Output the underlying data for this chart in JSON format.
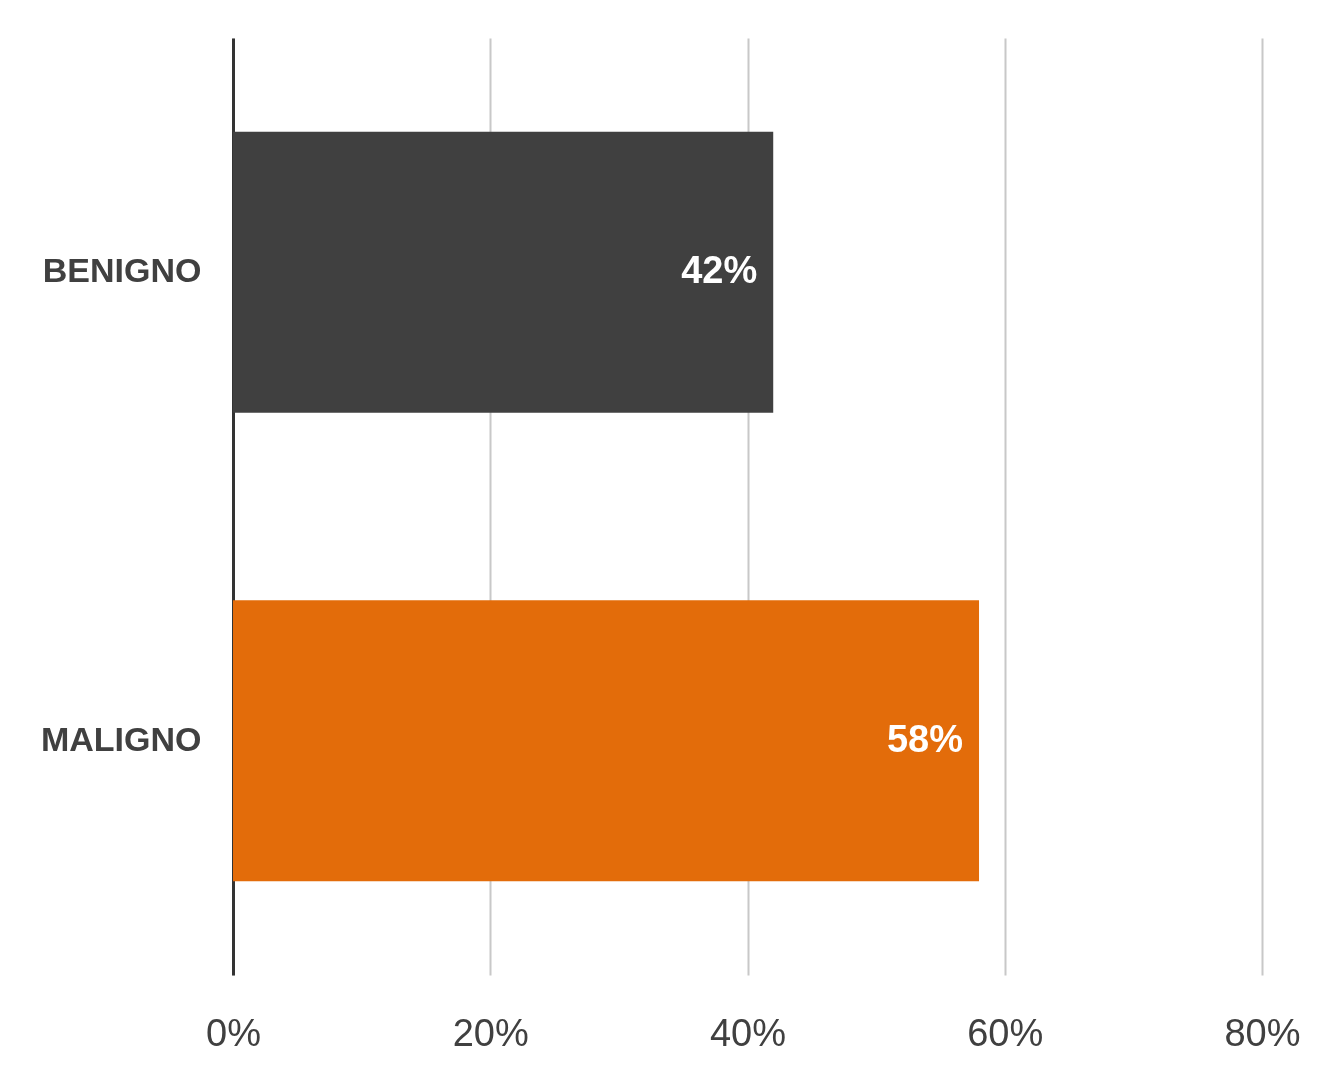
{
  "chart_data": {
    "type": "bar",
    "orientation": "horizontal",
    "categories": [
      "BENIGNO",
      "MALIGNO"
    ],
    "values": [
      42,
      58
    ],
    "colors": [
      "#404040",
      "#e36c0a"
    ],
    "value_labels": [
      "42%",
      "58%"
    ],
    "xlim": [
      0,
      80
    ],
    "xticks": [
      {
        "value": 0,
        "label": "0%"
      },
      {
        "value": 20,
        "label": "20%"
      },
      {
        "value": 40,
        "label": "40%"
      },
      {
        "value": 60,
        "label": "60%"
      },
      {
        "value": 80,
        "label": "80%"
      }
    ],
    "grid": "x"
  }
}
